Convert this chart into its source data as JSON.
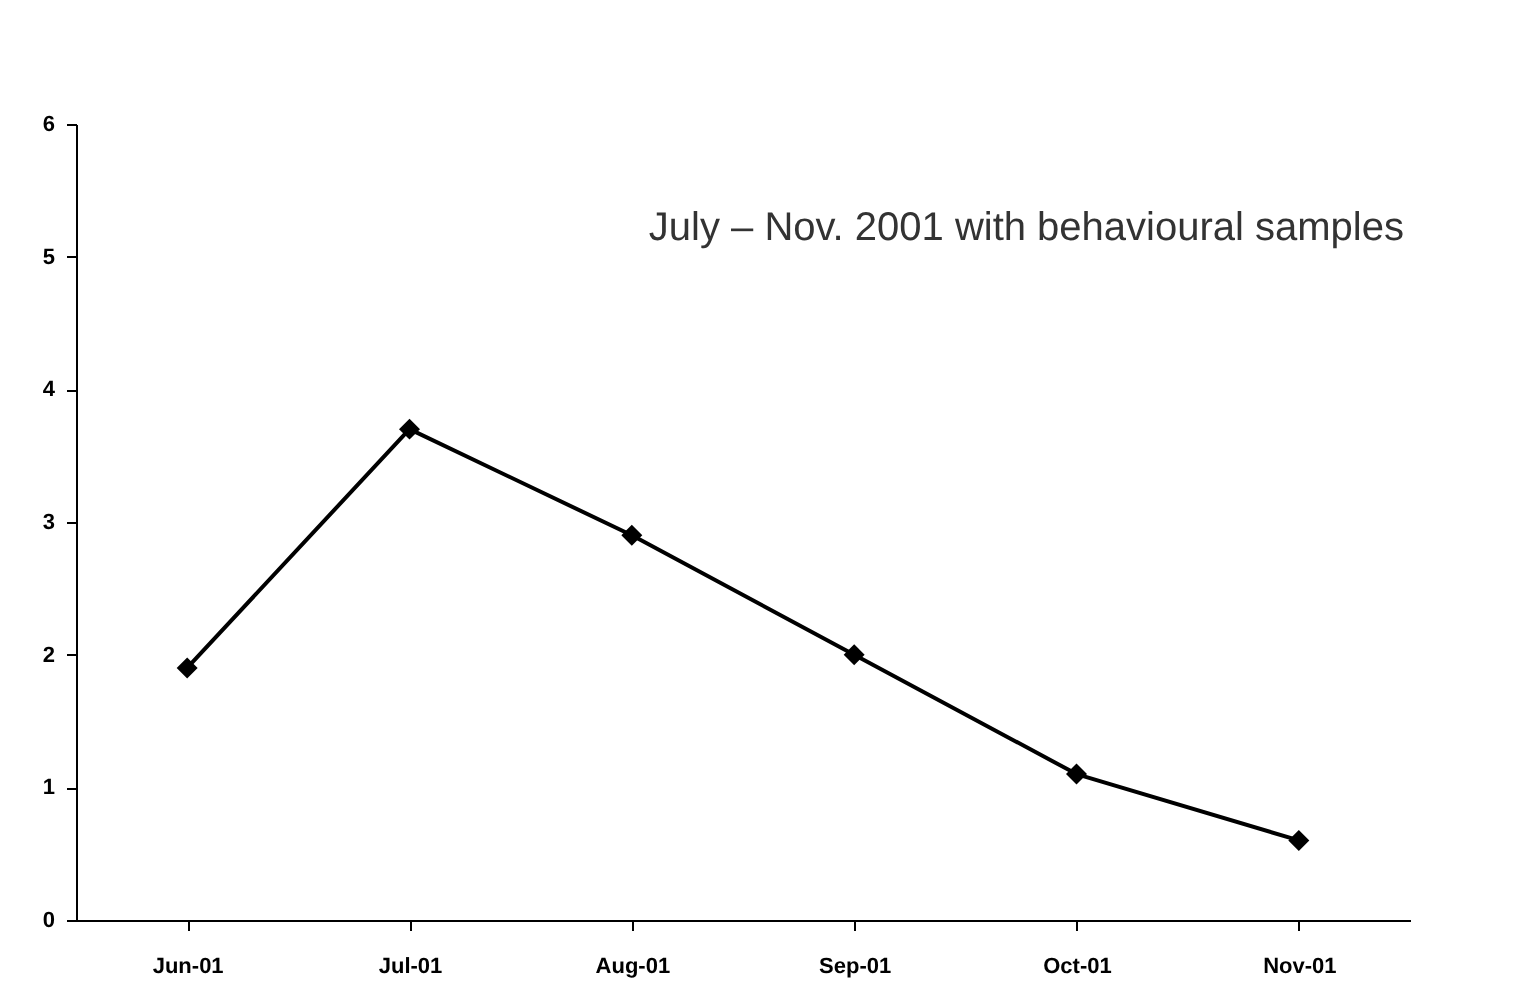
{
  "chart_data": {
    "type": "line",
    "categories": [
      "Jun-01",
      "Jul-01",
      "Aug-01",
      "Sep-01",
      "Oct-01",
      "Nov-01"
    ],
    "values": [
      1.9,
      3.7,
      2.9,
      2.0,
      1.1,
      0.6
    ],
    "color": "#000000",
    "ylim": [
      0,
      6
    ],
    "yticks": [
      0,
      1,
      2,
      3,
      4,
      5,
      6
    ],
    "marker": "diamond",
    "line_style": "solid",
    "grid": false,
    "annotations": [
      "July – Nov. 2001 with behavioural samples"
    ]
  }
}
